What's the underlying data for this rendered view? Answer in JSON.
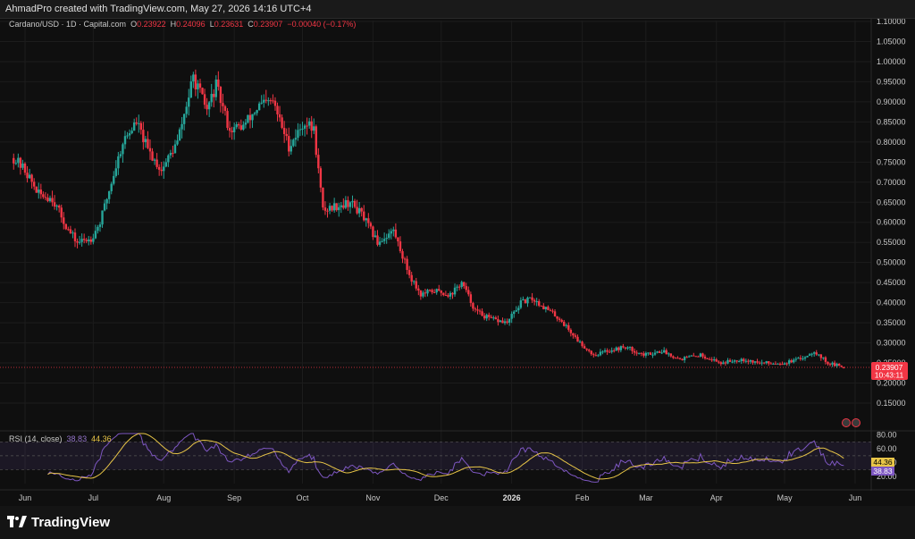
{
  "header": {
    "text": "AhmadPro created with TradingView.com, May 27, 2026 14:16 UTC+4"
  },
  "legend": {
    "symbol": "Cardano/USD · 1D · Capital.com",
    "o_label": "O",
    "o": "0.23922",
    "h_label": "H",
    "h": "0.24096",
    "l_label": "L",
    "l": "0.23631",
    "c_label": "C",
    "c": "0.23907",
    "change": "−0.00040 (−0.17%)"
  },
  "price_tag": {
    "price": "0.23907",
    "countdown": "10:43:11"
  },
  "rsi": {
    "label": "RSI (14, close)",
    "value": "38.83",
    "ma_value": "44.36",
    "tag_rsi": "38.83",
    "tag_ma": "44.36",
    "ticks": [
      "80.00",
      "60.00",
      "40.00",
      "20.00"
    ]
  },
  "colors": {
    "up": "#26a69a",
    "down": "#f23645",
    "rsi": "#7e57c2",
    "rsi_ma": "#e8c547",
    "price_tag": "#f23645",
    "background": "#0f0f0f"
  },
  "footer": {
    "brand": "TradingView"
  },
  "chart_data": {
    "type": "candlestick",
    "title": "Cardano/USD · 1D · Capital.com",
    "ylim": [
      0.14,
      1.1
    ],
    "y_ticks": [
      "1.10000",
      "1.05000",
      "1.00000",
      "0.95000",
      "0.90000",
      "0.85000",
      "0.80000",
      "0.75000",
      "0.70000",
      "0.65000",
      "0.60000",
      "0.55000",
      "0.50000",
      "0.45000",
      "0.40000",
      "0.35000",
      "0.30000",
      "0.25000",
      "0.20000",
      "0.15000"
    ],
    "x_ticks": [
      "Jun",
      "Jul",
      "Aug",
      "Sep",
      "Oct",
      "Nov",
      "Dec",
      "2026",
      "Feb",
      "Mar",
      "Apr",
      "May",
      "Jun"
    ],
    "x_range": [
      "2025-05-27",
      "2026-06-05"
    ],
    "close_path": [
      [
        "2025-05-27",
        0.76
      ],
      [
        "2025-06-01",
        0.73
      ],
      [
        "2025-06-07",
        0.67
      ],
      [
        "2025-06-13",
        0.66
      ],
      [
        "2025-06-20",
        0.58
      ],
      [
        "2025-06-24",
        0.55
      ],
      [
        "2025-06-30",
        0.56
      ],
      [
        "2025-07-04",
        0.6
      ],
      [
        "2025-07-10",
        0.72
      ],
      [
        "2025-07-14",
        0.8
      ],
      [
        "2025-07-20",
        0.85
      ],
      [
        "2025-07-25",
        0.78
      ],
      [
        "2025-07-31",
        0.73
      ],
      [
        "2025-08-07",
        0.8
      ],
      [
        "2025-08-14",
        0.96
      ],
      [
        "2025-08-20",
        0.88
      ],
      [
        "2025-08-24",
        0.94
      ],
      [
        "2025-08-30",
        0.83
      ],
      [
        "2025-09-05",
        0.84
      ],
      [
        "2025-09-12",
        0.89
      ],
      [
        "2025-09-18",
        0.9
      ],
      [
        "2025-09-25",
        0.79
      ],
      [
        "2025-10-02",
        0.85
      ],
      [
        "2025-10-06",
        0.83
      ],
      [
        "2025-10-10",
        0.63
      ],
      [
        "2025-10-15",
        0.64
      ],
      [
        "2025-10-22",
        0.65
      ],
      [
        "2025-10-27",
        0.62
      ],
      [
        "2025-11-03",
        0.55
      ],
      [
        "2025-11-10",
        0.58
      ],
      [
        "2025-11-17",
        0.47
      ],
      [
        "2025-11-22",
        0.42
      ],
      [
        "2025-11-28",
        0.43
      ],
      [
        "2025-12-05",
        0.42
      ],
      [
        "2025-12-10",
        0.45
      ],
      [
        "2025-12-16",
        0.38
      ],
      [
        "2025-12-22",
        0.36
      ],
      [
        "2025-12-30",
        0.35
      ],
      [
        "2026-01-05",
        0.4
      ],
      [
        "2026-01-10",
        0.41
      ],
      [
        "2026-01-15",
        0.39
      ],
      [
        "2026-01-22",
        0.36
      ],
      [
        "2026-01-31",
        0.3
      ],
      [
        "2026-02-06",
        0.27
      ],
      [
        "2026-02-12",
        0.28
      ],
      [
        "2026-02-20",
        0.29
      ],
      [
        "2026-02-28",
        0.27
      ],
      [
        "2026-03-08",
        0.28
      ],
      [
        "2026-03-16",
        0.26
      ],
      [
        "2026-03-25",
        0.27
      ],
      [
        "2026-04-03",
        0.25
      ],
      [
        "2026-04-12",
        0.26
      ],
      [
        "2026-04-20",
        0.25
      ],
      [
        "2026-05-01",
        0.25
      ],
      [
        "2026-05-08",
        0.26
      ],
      [
        "2026-05-14",
        0.28
      ],
      [
        "2026-05-20",
        0.25
      ],
      [
        "2026-05-27",
        0.239
      ]
    ],
    "last": {
      "open": 0.23922,
      "high": 0.24096,
      "low": 0.23631,
      "close": 0.23907
    },
    "rsi_ylim": [
      10,
      82
    ]
  }
}
